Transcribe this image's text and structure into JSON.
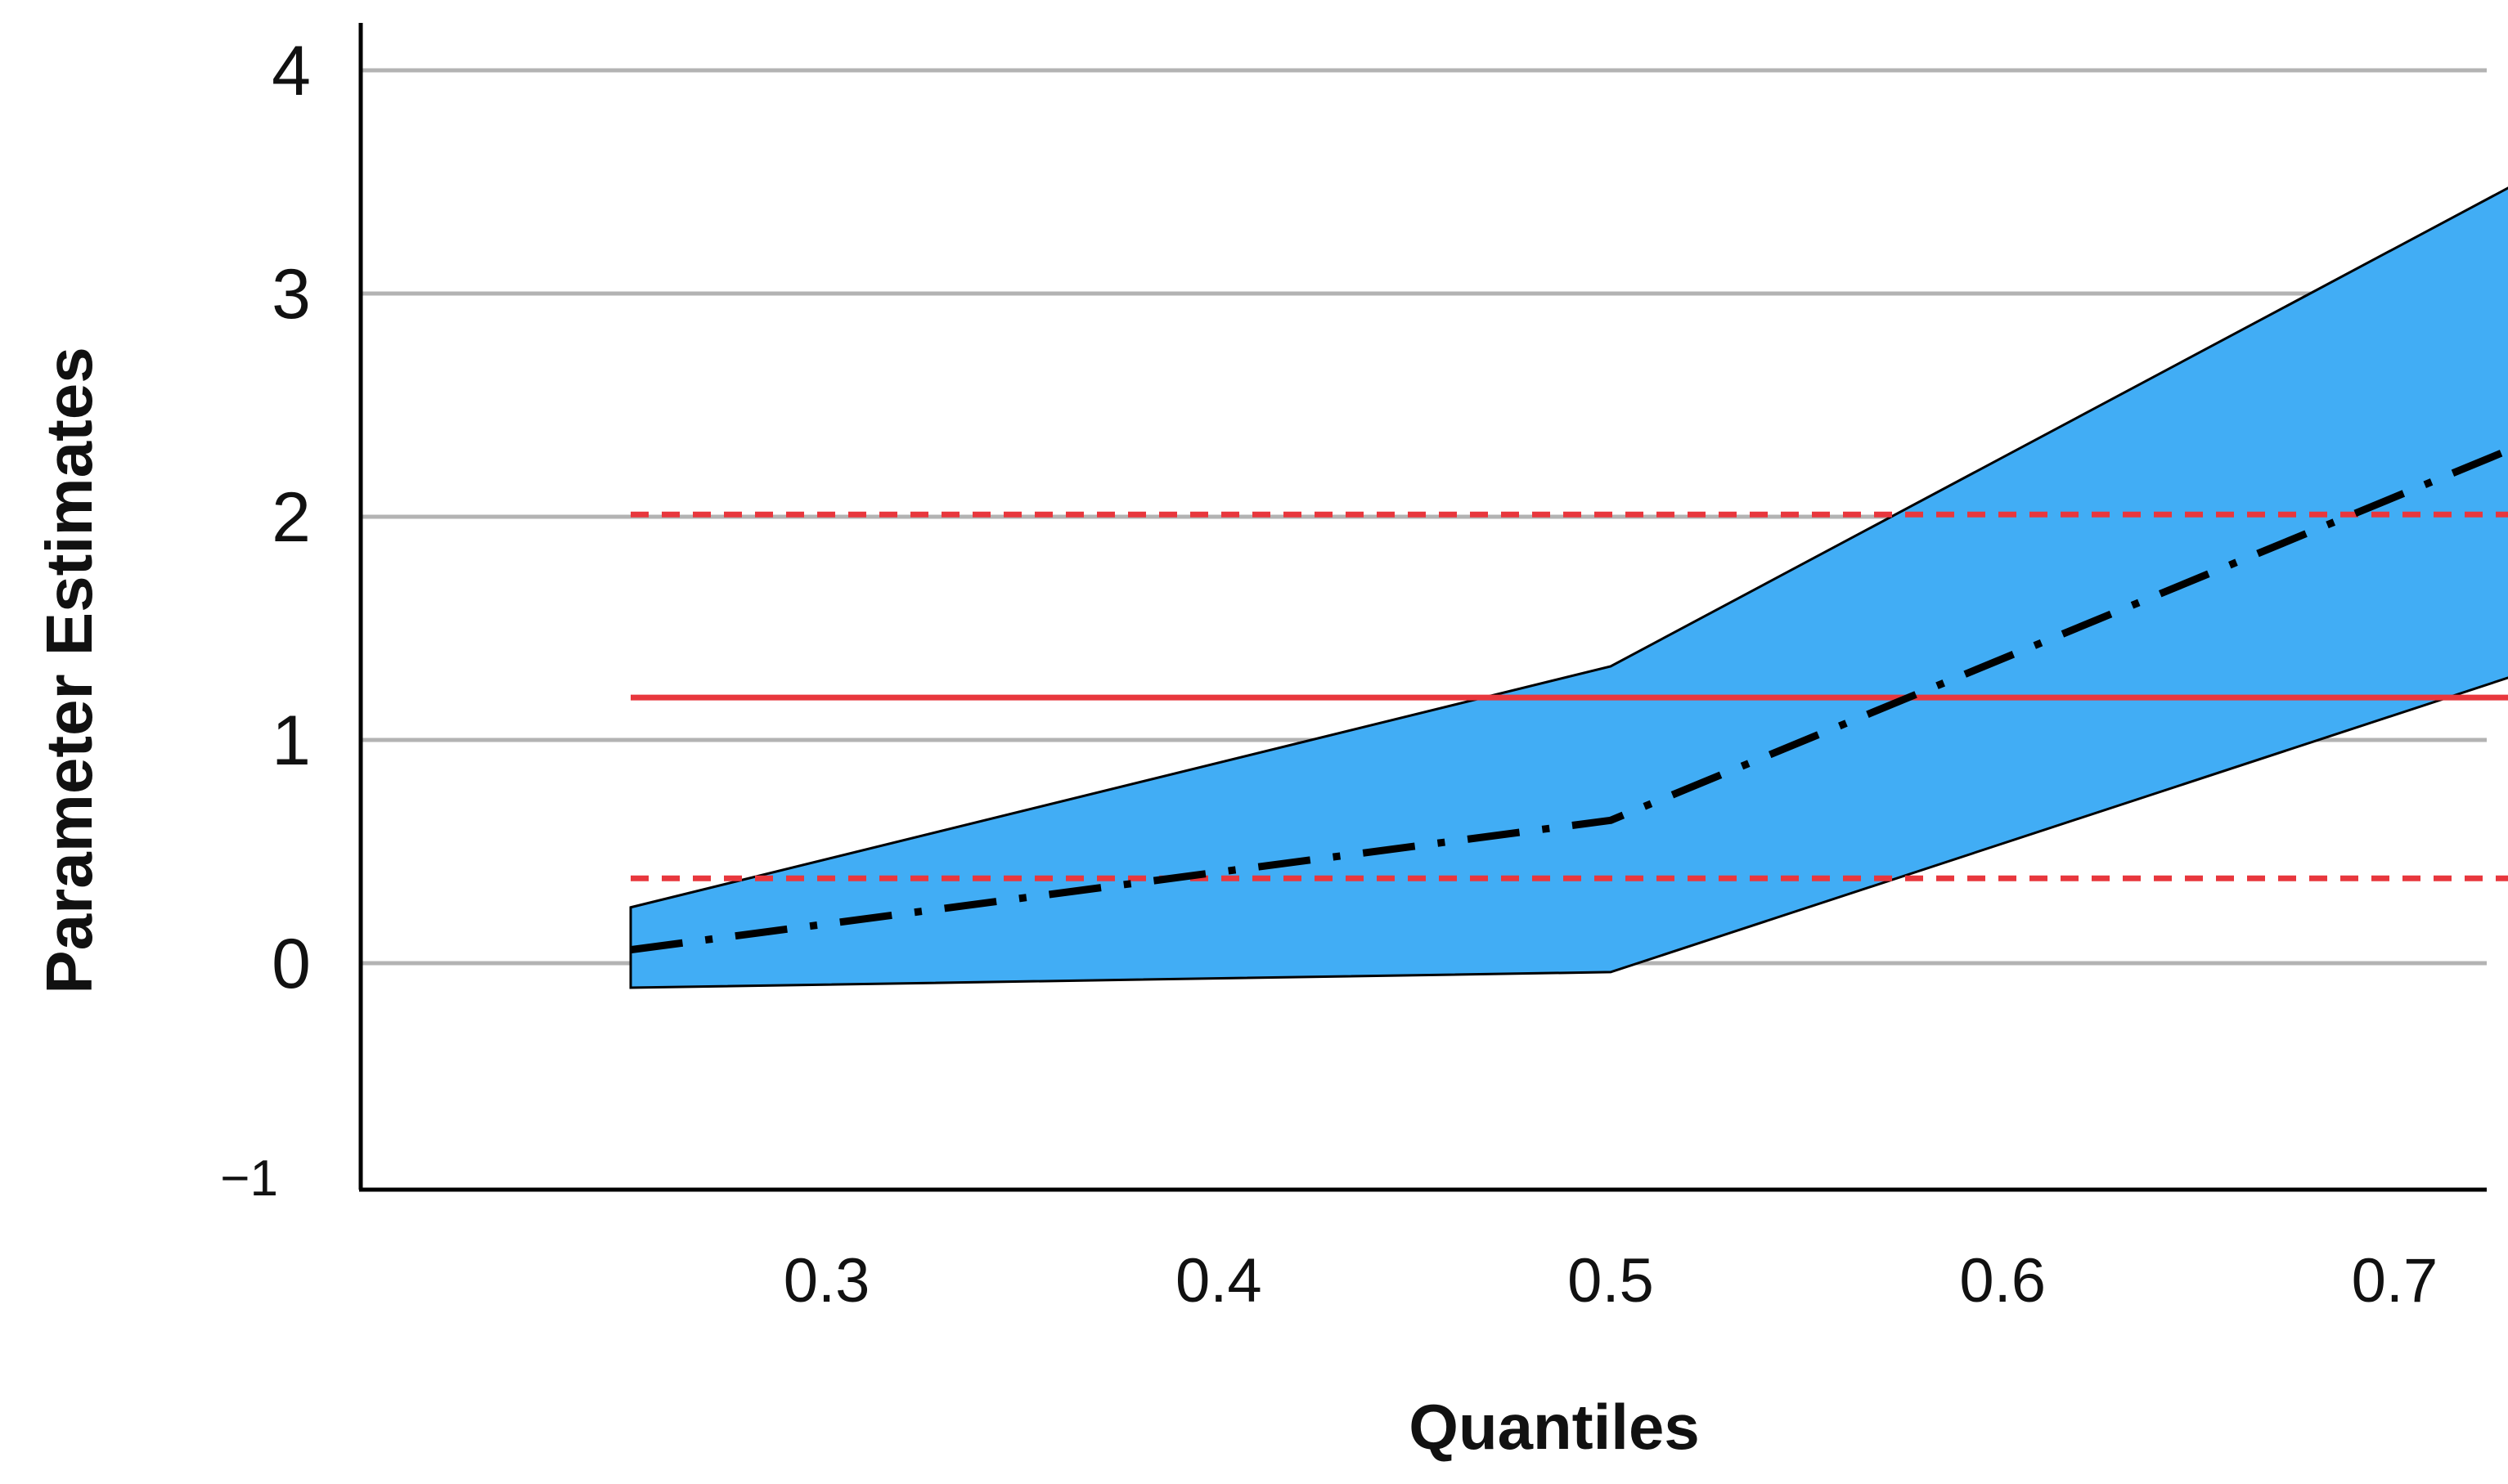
{
  "colors": {
    "band_fill": "#41adf5",
    "band_stroke": "#000000",
    "estimate_line": "#000000",
    "ols_line": "#e8373d",
    "grid": "#b3b3b3",
    "axis": "#000000"
  },
  "chart_data": {
    "type": "line",
    "title": "",
    "xlabel": "Quantiles",
    "ylabel": "Parameter Estimates",
    "xlim": [
      0.25,
      0.76
    ],
    "ylim": [
      -1,
      4
    ],
    "xticks": [
      0.3,
      0.4,
      0.5,
      0.6,
      0.7
    ],
    "xtick_labels": [
      "0.3",
      "0.4",
      "0.5",
      "0.6",
      "0.7"
    ],
    "yticks": [
      -1,
      0,
      1,
      2,
      3,
      4
    ],
    "ytick_labels": [
      "−1",
      "0",
      "1",
      "2",
      "3",
      "4"
    ],
    "ygrid": true,
    "legend": "none",
    "confidence_band": {
      "x": [
        0.25,
        0.5,
        0.75
      ],
      "upper": [
        0.25,
        1.33,
        3.67
      ],
      "lower": [
        -0.11,
        -0.04,
        1.4
      ],
      "color": "#41adf5"
    },
    "series": [
      {
        "role": "quantile regression estimate",
        "style": "dash-dot",
        "color": "#000000",
        "x": [
          0.25,
          0.5,
          0.75
        ],
        "y": [
          0.06,
          0.64,
          2.45
        ]
      }
    ],
    "reference_lines": [
      {
        "role": "estimate",
        "style": "solid",
        "color": "#e8373d",
        "y": 1.19
      },
      {
        "role": "upper confidence bound",
        "style": "dashed",
        "color": "#e8373d",
        "y": 2.01
      },
      {
        "role": "lower confidence bound",
        "style": "dashed",
        "color": "#e8373d",
        "y": 0.38
      }
    ]
  }
}
